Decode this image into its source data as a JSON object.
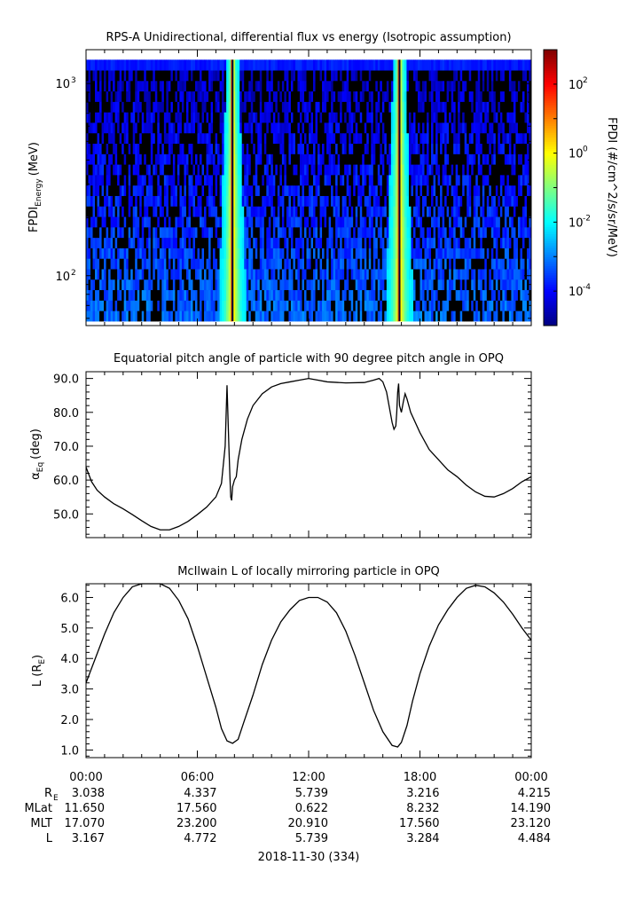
{
  "chart_data": [
    {
      "type": "heatmap",
      "title": "RPS-A Unidirectional, differential flux vs energy (Isotropic assumption)",
      "ylabel": "FPDI",
      "ylabel_sub": "Energy",
      "ylabel_unit": "(MeV)",
      "yscale": "log",
      "ylim": [
        55,
        1500
      ],
      "yticks": [
        {
          "value": 100,
          "base": "10",
          "exp": "2"
        },
        {
          "value": 1000,
          "base": "10",
          "exp": "3"
        }
      ],
      "energy_range_mev": [
        58,
        1330
      ],
      "xlim": [
        0,
        24
      ],
      "colorbar": {
        "label": "FPDI (#/cm^2/s/sr/MeV)",
        "scale": "log",
        "range": [
          1e-05,
          1000
        ],
        "ticks": [
          {
            "value": 0.0001,
            "base": "10",
            "exp": "-4"
          },
          {
            "value": 0.01,
            "base": "10",
            "exp": "-2"
          },
          {
            "value": 1,
            "base": "10",
            "exp": "0"
          },
          {
            "value": 100,
            "base": "10",
            "exp": "2"
          }
        ]
      },
      "features": [
        {
          "time_h": 7.9,
          "note": "flux enhancement band (~1e-1 to 1e1) near perigee"
        },
        {
          "time_h": 16.9,
          "note": "flux enhancement band (~1e-1 to 1e1) near perigee"
        }
      ],
      "background_level": 0.001
    },
    {
      "type": "line",
      "title": "Equatorial pitch angle of particle with 90 degree pitch angle in OPQ",
      "ylabel": "α",
      "ylabel_sub": "Eq",
      "ylabel_unit": "(deg)",
      "ylim": [
        43,
        92
      ],
      "yticks": [
        50,
        60,
        70,
        80,
        90
      ],
      "xlim": [
        0,
        24
      ],
      "x": [
        0,
        0.3,
        0.6,
        1.0,
        1.5,
        2.0,
        2.5,
        3.0,
        3.5,
        4.0,
        4.5,
        5.0,
        5.5,
        6.0,
        6.5,
        7.0,
        7.3,
        7.5,
        7.6,
        7.7,
        7.75,
        7.8,
        7.85,
        7.9,
        8.0,
        8.1,
        8.2,
        8.4,
        8.7,
        9.0,
        9.5,
        10.0,
        10.5,
        11.0,
        11.5,
        12.0,
        12.5,
        13.0,
        14.0,
        15.0,
        15.5,
        15.8,
        16.0,
        16.2,
        16.4,
        16.5,
        16.6,
        16.7,
        16.75,
        16.8,
        16.85,
        16.9,
        17.0,
        17.1,
        17.2,
        17.3,
        17.5,
        18.0,
        18.5,
        19.0,
        19.5,
        20.0,
        20.5,
        21.0,
        21.5,
        22.0,
        22.5,
        23.0,
        23.5,
        24.0
      ],
      "y": [
        63.8,
        59.5,
        57.0,
        55.0,
        53.0,
        51.5,
        49.8,
        48.0,
        46.3,
        45.3,
        45.3,
        46.3,
        47.8,
        49.8,
        52.0,
        55.0,
        59.0,
        70.0,
        88.0,
        70.0,
        62.0,
        55.0,
        54.0,
        58.0,
        60.0,
        61.0,
        66.0,
        72.0,
        78.0,
        82.0,
        85.5,
        87.5,
        88.5,
        89.0,
        89.5,
        90.0,
        89.5,
        89.0,
        88.7,
        88.8,
        89.5,
        90.0,
        89.0,
        86.0,
        80.0,
        77.0,
        75.0,
        76.0,
        80.0,
        86.0,
        88.5,
        82.0,
        80.0,
        83.0,
        85.5,
        84.0,
        80.0,
        74.0,
        69.0,
        66.0,
        63.0,
        61.0,
        58.5,
        56.5,
        55.2,
        55.0,
        56.0,
        57.5,
        59.5,
        61.0
      ]
    },
    {
      "type": "line",
      "title": "McIlwain L of locally mirroring particle in OPQ",
      "ylabel": "L (R",
      "ylabel_sub": "E",
      "ylabel_unit": ")",
      "ylim": [
        0.75,
        6.45
      ],
      "yticks": [
        1.0,
        2.0,
        3.0,
        4.0,
        5.0,
        6.0
      ],
      "xlim": [
        0,
        24
      ],
      "x": [
        0,
        0.5,
        1.0,
        1.5,
        2.0,
        2.5,
        3.0,
        3.5,
        4.0,
        4.5,
        5.0,
        5.5,
        6.0,
        6.5,
        7.0,
        7.3,
        7.6,
        7.9,
        8.2,
        8.5,
        9.0,
        9.5,
        10.0,
        10.5,
        11.0,
        11.5,
        12.0,
        12.5,
        13.0,
        13.5,
        14.0,
        14.5,
        15.0,
        15.5,
        16.0,
        16.5,
        16.8,
        17.0,
        17.3,
        17.6,
        18.0,
        18.5,
        19.0,
        19.5,
        20.0,
        20.5,
        21.0,
        21.5,
        22.0,
        22.5,
        23.0,
        23.5,
        24.0
      ],
      "y": [
        3.2,
        4.0,
        4.8,
        5.5,
        6.0,
        6.35,
        6.45,
        6.45,
        6.45,
        6.3,
        5.9,
        5.3,
        4.4,
        3.4,
        2.4,
        1.7,
        1.3,
        1.22,
        1.35,
        1.9,
        2.8,
        3.8,
        4.6,
        5.2,
        5.6,
        5.9,
        6.0,
        6.0,
        5.85,
        5.5,
        4.9,
        4.1,
        3.2,
        2.3,
        1.6,
        1.15,
        1.1,
        1.25,
        1.8,
        2.6,
        3.5,
        4.4,
        5.1,
        5.6,
        6.0,
        6.3,
        6.4,
        6.35,
        6.15,
        5.85,
        5.45,
        5.0,
        4.6
      ]
    }
  ],
  "time_axis": {
    "tick_labels": [
      "00:00",
      "06:00",
      "12:00",
      "18:00",
      "00:00"
    ],
    "date_label": "2018-11-30 (334)",
    "ephemeris": [
      {
        "name": "R",
        "name_sub": "E",
        "values": [
          "3.038",
          "4.337",
          "5.739",
          "3.216",
          "4.215"
        ]
      },
      {
        "name": "MLat",
        "name_sub": "",
        "values": [
          "11.650",
          "17.560",
          "0.622",
          "8.232",
          "14.190"
        ]
      },
      {
        "name": "MLT",
        "name_sub": "",
        "values": [
          "17.070",
          "23.200",
          "20.910",
          "17.560",
          "23.120"
        ]
      },
      {
        "name": "L",
        "name_sub": "",
        "values": [
          "3.167",
          "4.772",
          "5.739",
          "3.284",
          "4.484"
        ]
      }
    ]
  },
  "colors": {
    "line": "#000000",
    "colormap": [
      "#00007f",
      "#0000ff",
      "#007fff",
      "#00ffff",
      "#7fff7f",
      "#ffff00",
      "#ff7f00",
      "#ff0000",
      "#7f0000"
    ]
  }
}
